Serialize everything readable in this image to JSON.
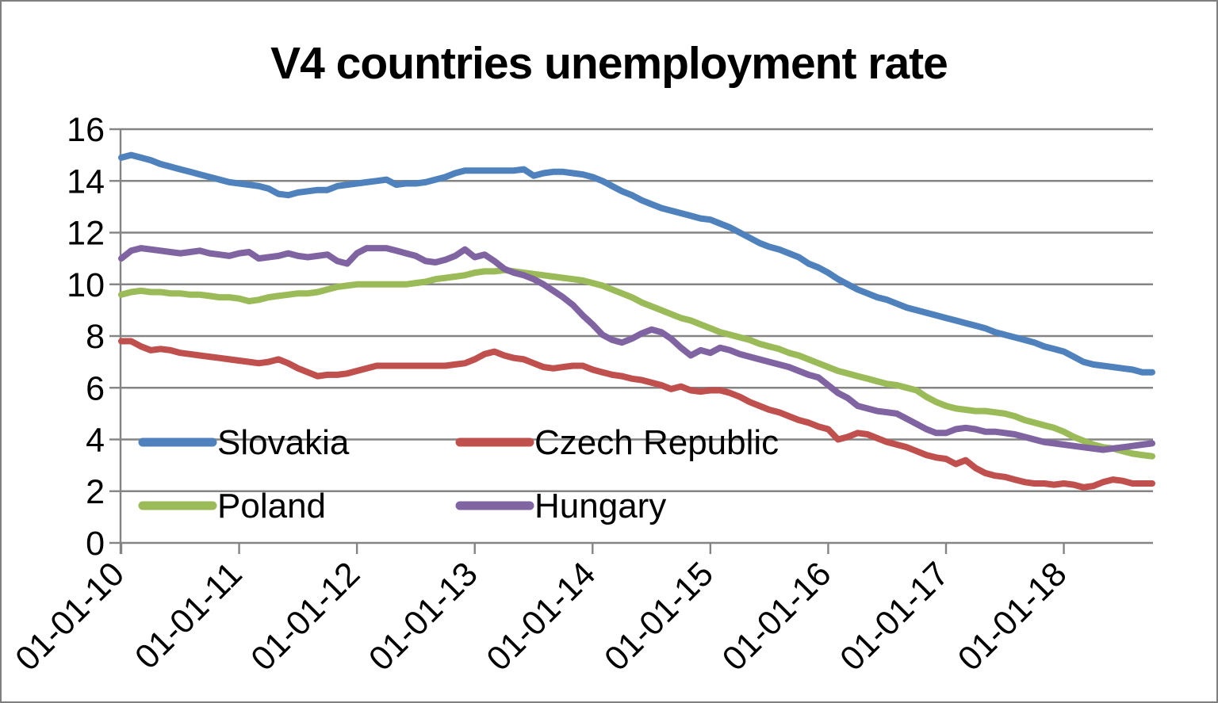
{
  "title": "V4 countries unemployment rate",
  "colors": {
    "background": "#ffffff",
    "frame_border": "#7f7f7f",
    "gridline": "#848484",
    "axis": "#848484",
    "text": "#000000"
  },
  "chart_data": {
    "type": "line",
    "title": "V4 countries unemployment rate",
    "xlabel": "",
    "ylabel": "",
    "ylim": [
      0,
      16
    ],
    "y_ticks": [
      0,
      2,
      4,
      6,
      8,
      10,
      12,
      14,
      16
    ],
    "x_tick_labels": [
      "01-01-10",
      "01-01-11",
      "01-01-12",
      "01-01-13",
      "01-01-14",
      "01-01-15",
      "01-01-16",
      "01-01-17",
      "01-01-18"
    ],
    "x_frequency": "monthly, Jan 2010 through Oct 2018, year tick every 12 points",
    "grid": "horizontal",
    "legend_position": "inside lower-left, 2 columns x 2 rows",
    "legend_order": [
      "Slovakia",
      "Czech Republic",
      "Poland",
      "Hungary"
    ],
    "series": [
      {
        "name": "Slovakia",
        "color": "#4F81BD",
        "values": [
          14.9,
          15.0,
          14.9,
          14.8,
          14.65,
          14.55,
          14.45,
          14.35,
          14.25,
          14.15,
          14.05,
          13.95,
          13.9,
          13.85,
          13.8,
          13.7,
          13.5,
          13.45,
          13.55,
          13.6,
          13.65,
          13.65,
          13.8,
          13.85,
          13.9,
          13.95,
          14.0,
          14.05,
          13.85,
          13.9,
          13.9,
          13.95,
          14.05,
          14.15,
          14.3,
          14.4,
          14.4,
          14.4,
          14.4,
          14.4,
          14.4,
          14.45,
          14.2,
          14.3,
          14.35,
          14.35,
          14.3,
          14.25,
          14.15,
          14.0,
          13.8,
          13.6,
          13.45,
          13.25,
          13.1,
          12.95,
          12.85,
          12.75,
          12.65,
          12.55,
          12.5,
          12.35,
          12.2,
          12.0,
          11.8,
          11.6,
          11.45,
          11.35,
          11.2,
          11.05,
          10.8,
          10.65,
          10.45,
          10.2,
          10.0,
          9.8,
          9.65,
          9.5,
          9.4,
          9.25,
          9.1,
          9.0,
          8.9,
          8.8,
          8.7,
          8.6,
          8.5,
          8.4,
          8.3,
          8.15,
          8.05,
          7.95,
          7.85,
          7.75,
          7.6,
          7.5,
          7.4,
          7.2,
          7.0,
          6.9,
          6.85,
          6.8,
          6.75,
          6.7,
          6.6,
          6.6
        ]
      },
      {
        "name": "Czech Republic",
        "color": "#C0504D",
        "values": [
          7.8,
          7.8,
          7.6,
          7.45,
          7.5,
          7.45,
          7.35,
          7.3,
          7.25,
          7.2,
          7.15,
          7.1,
          7.05,
          7.0,
          6.95,
          7.0,
          7.1,
          6.95,
          6.75,
          6.6,
          6.45,
          6.5,
          6.5,
          6.55,
          6.65,
          6.75,
          6.85,
          6.85,
          6.85,
          6.85,
          6.85,
          6.85,
          6.85,
          6.85,
          6.9,
          6.95,
          7.1,
          7.3,
          7.4,
          7.25,
          7.15,
          7.1,
          6.95,
          6.8,
          6.75,
          6.8,
          6.85,
          6.85,
          6.7,
          6.6,
          6.5,
          6.45,
          6.35,
          6.3,
          6.2,
          6.1,
          5.95,
          6.05,
          5.9,
          5.85,
          5.9,
          5.9,
          5.8,
          5.65,
          5.45,
          5.3,
          5.15,
          5.05,
          4.9,
          4.75,
          4.65,
          4.5,
          4.4,
          4.0,
          4.1,
          4.25,
          4.2,
          4.05,
          3.9,
          3.8,
          3.7,
          3.55,
          3.4,
          3.3,
          3.25,
          3.05,
          3.2,
          2.9,
          2.7,
          2.6,
          2.55,
          2.45,
          2.35,
          2.3,
          2.3,
          2.25,
          2.3,
          2.25,
          2.15,
          2.2,
          2.35,
          2.45,
          2.4,
          2.3,
          2.3,
          2.3
        ]
      },
      {
        "name": "Poland",
        "color": "#9BBB59",
        "values": [
          9.6,
          9.7,
          9.75,
          9.7,
          9.7,
          9.65,
          9.65,
          9.6,
          9.6,
          9.55,
          9.5,
          9.5,
          9.45,
          9.35,
          9.4,
          9.5,
          9.55,
          9.6,
          9.65,
          9.65,
          9.7,
          9.8,
          9.9,
          9.95,
          10.0,
          10.0,
          10.0,
          10.0,
          10.0,
          10.0,
          10.05,
          10.1,
          10.2,
          10.25,
          10.3,
          10.35,
          10.45,
          10.5,
          10.5,
          10.55,
          10.5,
          10.45,
          10.4,
          10.35,
          10.3,
          10.25,
          10.2,
          10.15,
          10.05,
          9.95,
          9.8,
          9.65,
          9.5,
          9.3,
          9.15,
          9.0,
          8.85,
          8.7,
          8.6,
          8.45,
          8.3,
          8.15,
          8.05,
          7.95,
          7.85,
          7.7,
          7.6,
          7.5,
          7.35,
          7.25,
          7.1,
          6.95,
          6.8,
          6.65,
          6.55,
          6.45,
          6.35,
          6.25,
          6.15,
          6.1,
          6.0,
          5.9,
          5.65,
          5.45,
          5.3,
          5.2,
          5.15,
          5.1,
          5.1,
          5.05,
          5.0,
          4.9,
          4.75,
          4.65,
          4.55,
          4.45,
          4.3,
          4.1,
          3.95,
          3.8,
          3.7,
          3.65,
          3.55,
          3.45,
          3.4,
          3.35
        ]
      },
      {
        "name": "Hungary",
        "color": "#8064A2",
        "values": [
          11.0,
          11.3,
          11.4,
          11.35,
          11.3,
          11.25,
          11.2,
          11.25,
          11.3,
          11.2,
          11.15,
          11.1,
          11.2,
          11.25,
          11.0,
          11.05,
          11.1,
          11.2,
          11.1,
          11.05,
          11.1,
          11.15,
          10.9,
          10.8,
          11.2,
          11.4,
          11.4,
          11.4,
          11.3,
          11.2,
          11.1,
          10.9,
          10.85,
          10.95,
          11.1,
          11.35,
          11.05,
          11.15,
          10.9,
          10.6,
          10.45,
          10.35,
          10.2,
          10.0,
          9.75,
          9.5,
          9.2,
          8.8,
          8.45,
          8.05,
          7.85,
          7.75,
          7.9,
          8.1,
          8.25,
          8.15,
          7.9,
          7.55,
          7.25,
          7.45,
          7.35,
          7.55,
          7.45,
          7.3,
          7.2,
          7.1,
          7.0,
          6.9,
          6.8,
          6.65,
          6.5,
          6.4,
          6.1,
          5.8,
          5.6,
          5.3,
          5.2,
          5.1,
          5.05,
          5.0,
          4.8,
          4.6,
          4.4,
          4.25,
          4.25,
          4.4,
          4.45,
          4.4,
          4.3,
          4.3,
          4.25,
          4.2,
          4.1,
          4.0,
          3.9,
          3.85,
          3.8,
          3.75,
          3.7,
          3.65,
          3.6,
          3.65,
          3.7,
          3.75,
          3.8,
          3.85
        ]
      }
    ]
  }
}
